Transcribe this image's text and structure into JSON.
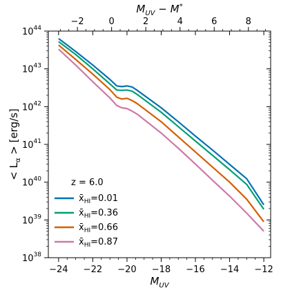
{
  "chart_data": {
    "type": "line",
    "xlabel": "M_UV",
    "x2label": "M_UV − M*",
    "ylabel": "< L_α > [erg/s]",
    "xlim": [
      -24.6,
      -11.6
    ],
    "ylog_lim": [
      38,
      44
    ],
    "x_ticks": [
      -24,
      -22,
      -20,
      -18,
      -16,
      -14,
      -12
    ],
    "x_tick_labels": [
      "−24",
      "−22",
      "−20",
      "−18",
      "−16",
      "−14",
      "−12"
    ],
    "x2_offset": 20.9,
    "x2_ticks": [
      -2,
      0,
      2,
      4,
      6,
      8
    ],
    "x2_tick_labels": [
      "−2",
      "0",
      "2",
      "4",
      "6",
      "8"
    ],
    "y_tick_exponents": [
      38,
      39,
      40,
      41,
      42,
      43,
      44
    ],
    "legend_title": "z = 6.0",
    "legend_position": "lower-left",
    "series": [
      {
        "name": "x̄_HI=0.01",
        "label_value": "0.01",
        "color": "#0072b2",
        "x": [
          -24.0,
          -23.0,
          -22.0,
          -21.0,
          -20.6,
          -20.3,
          -20.0,
          -19.7,
          -19.4,
          -18.0,
          -17.0,
          -16.0,
          -15.0,
          -14.0,
          -13.0,
          -12.0
        ],
        "log10_y": [
          43.8,
          43.46,
          43.1,
          42.72,
          42.55,
          42.53,
          42.55,
          42.52,
          42.43,
          41.97,
          41.6,
          41.22,
          40.85,
          40.47,
          40.09,
          39.4
        ]
      },
      {
        "name": "x̄_HI=0.36",
        "label_value": "0.36",
        "color": "#009e73",
        "x": [
          -24.0,
          -23.0,
          -22.0,
          -21.0,
          -20.6,
          -20.3,
          -20.0,
          -19.7,
          -19.4,
          -18.0,
          -17.0,
          -16.0,
          -15.0,
          -14.0,
          -13.0,
          -12.0
        ],
        "log10_y": [
          43.72,
          43.38,
          43.0,
          42.6,
          42.44,
          42.43,
          42.44,
          42.41,
          42.32,
          41.85,
          41.47,
          41.09,
          40.71,
          40.33,
          39.94,
          39.28
        ]
      },
      {
        "name": "x̄_HI=0.66",
        "label_value": "0.66",
        "color": "#d55e00",
        "x": [
          -24.0,
          -23.0,
          -22.0,
          -21.0,
          -20.6,
          -20.3,
          -20.0,
          -19.7,
          -19.4,
          -18.0,
          -17.0,
          -16.0,
          -15.0,
          -14.0,
          -13.0,
          -12.0
        ],
        "log10_y": [
          43.63,
          43.25,
          42.86,
          42.45,
          42.25,
          42.2,
          42.22,
          42.16,
          42.08,
          41.6,
          41.2,
          40.8,
          40.4,
          40.0,
          39.55,
          38.95
        ]
      },
      {
        "name": "x̄_HI=0.87",
        "label_value": "0.87",
        "color": "#cc79a7",
        "x": [
          -24.0,
          -23.0,
          -22.0,
          -21.0,
          -20.6,
          -20.3,
          -20.0,
          -19.7,
          -19.4,
          -18.0,
          -17.0,
          -16.0,
          -15.0,
          -14.0,
          -13.0,
          -12.0
        ],
        "log10_y": [
          43.52,
          43.1,
          42.66,
          42.23,
          42.03,
          41.97,
          41.95,
          41.88,
          41.8,
          41.3,
          40.9,
          40.48,
          40.05,
          39.63,
          39.18,
          38.7
        ]
      }
    ]
  }
}
